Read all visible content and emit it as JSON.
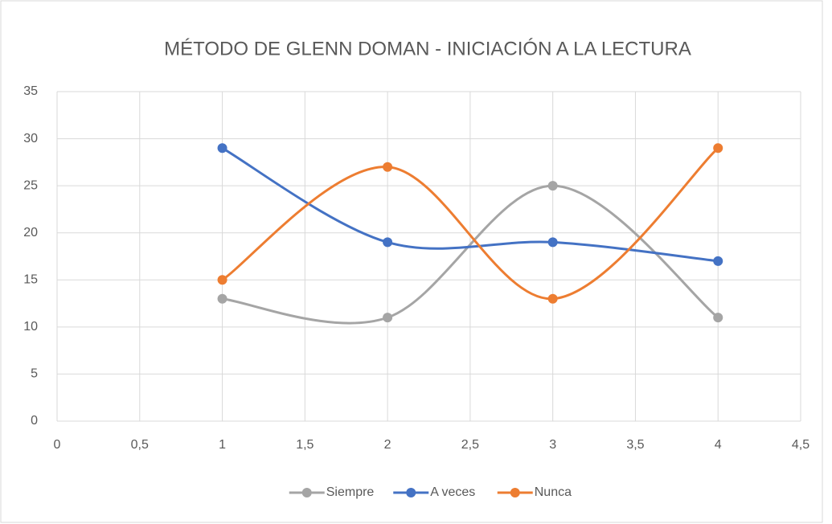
{
  "chart_data": {
    "type": "scatter-smooth",
    "title": "MÉTODO DE GLENN DOMAN - INICIACIÓN A LA LECTURA",
    "x": [
      1,
      2,
      3,
      4
    ],
    "series": [
      {
        "name": "Siempre",
        "color": "#a5a5a5",
        "values": [
          13,
          11,
          25,
          11
        ]
      },
      {
        "name": "A veces",
        "color": "#4472c4",
        "values": [
          29,
          19,
          19,
          17
        ]
      },
      {
        "name": "Nunca",
        "color": "#ed7d31",
        "values": [
          15,
          27,
          13,
          29
        ]
      }
    ],
    "xlim": [
      0,
      4.5
    ],
    "xticks": [
      0,
      {
        "value": 0.5,
        "label": "0,5"
      },
      1,
      {
        "value": 1.5,
        "label": "1,5"
      },
      2,
      {
        "value": 2.5,
        "label": "2,5"
      },
      3,
      {
        "value": 3.5,
        "label": "3,5"
      },
      4,
      {
        "value": 4.5,
        "label": "4,5"
      }
    ],
    "ylim": [
      0,
      35
    ],
    "yticks": [
      0,
      5,
      10,
      15,
      20,
      25,
      30,
      35
    ],
    "grid": true,
    "legend": "bottom"
  }
}
